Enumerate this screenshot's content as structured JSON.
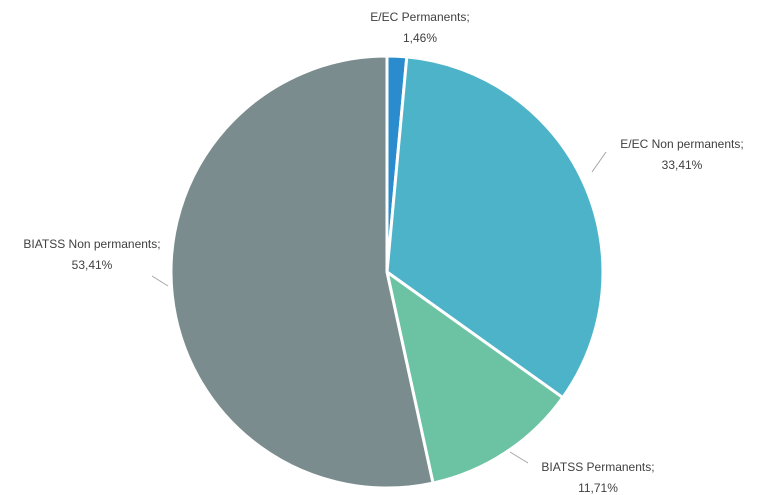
{
  "chart_data": {
    "type": "pie",
    "categories": [
      "E/EC Permanents",
      "E/EC Non permanents",
      "BIATSS Permanents",
      "BIATSS Non permanents"
    ],
    "values": [
      1.46,
      33.41,
      11.71,
      53.41
    ],
    "value_labels": [
      "1,46%",
      "33,41%",
      "11,71%",
      "53,41%"
    ],
    "label_separator": ";",
    "colors": [
      "#2a8ccc",
      "#4db3c8",
      "#6cc3a3",
      "#7b8c8e"
    ]
  }
}
